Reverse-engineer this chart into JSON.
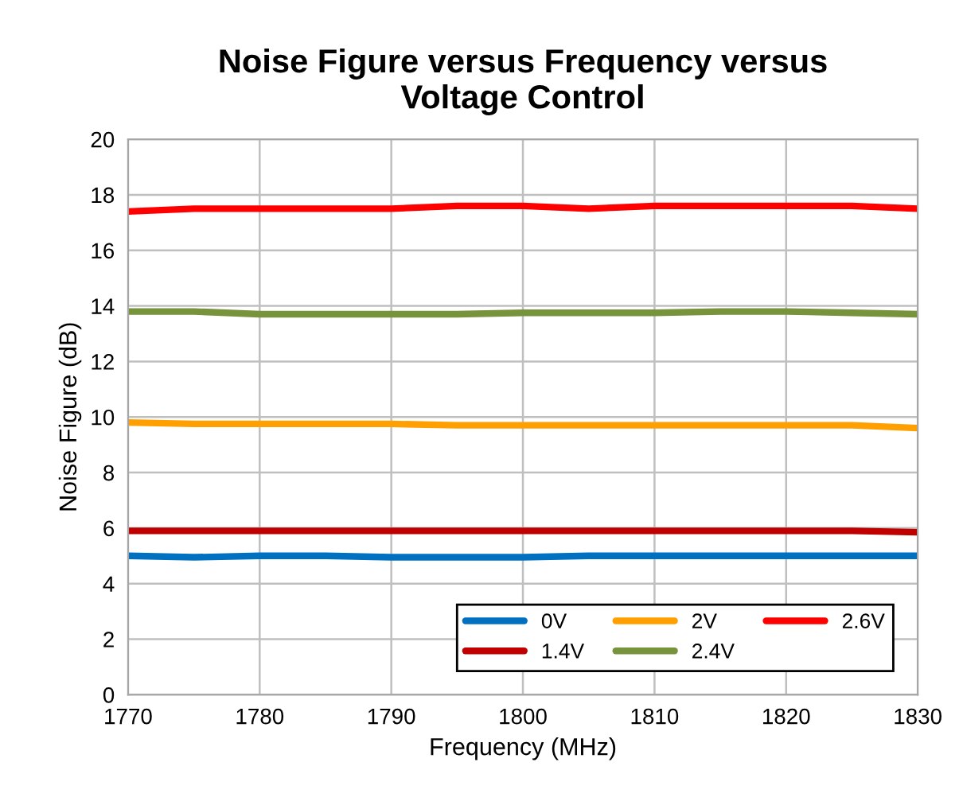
{
  "chart_data": {
    "type": "line",
    "title": "Noise Figure versus Frequency versus\nVoltage Control",
    "xlabel": "Frequency (MHz)",
    "ylabel": "Noise Figure (dB)",
    "x": [
      1770,
      1775,
      1780,
      1785,
      1790,
      1795,
      1800,
      1805,
      1810,
      1815,
      1820,
      1825,
      1830
    ],
    "series": [
      {
        "name": "0V",
        "color": "#0070c0",
        "values": [
          5.0,
          4.95,
          5.0,
          5.0,
          4.95,
          4.95,
          4.95,
          5.0,
          5.0,
          5.0,
          5.0,
          5.0,
          5.0
        ]
      },
      {
        "name": "1.4V",
        "color": "#c00000",
        "values": [
          5.9,
          5.9,
          5.9,
          5.9,
          5.9,
          5.9,
          5.9,
          5.9,
          5.9,
          5.9,
          5.9,
          5.9,
          5.85
        ]
      },
      {
        "name": "2V",
        "color": "#ffa000",
        "values": [
          9.8,
          9.75,
          9.75,
          9.75,
          9.75,
          9.7,
          9.7,
          9.7,
          9.7,
          9.7,
          9.7,
          9.7,
          9.6
        ]
      },
      {
        "name": "2.4V",
        "color": "#77933c",
        "values": [
          13.8,
          13.8,
          13.7,
          13.7,
          13.7,
          13.7,
          13.75,
          13.75,
          13.75,
          13.8,
          13.8,
          13.75,
          13.7
        ]
      },
      {
        "name": "2.6V",
        "color": "#ff0000",
        "values": [
          17.4,
          17.5,
          17.5,
          17.5,
          17.5,
          17.6,
          17.6,
          17.5,
          17.6,
          17.6,
          17.6,
          17.6,
          17.5
        ]
      }
    ],
    "xlim": [
      1770,
      1830
    ],
    "xticks": [
      1770,
      1780,
      1790,
      1800,
      1810,
      1820,
      1830
    ],
    "ylim": [
      0,
      20
    ],
    "yticks": [
      0,
      2,
      4,
      6,
      8,
      10,
      12,
      14,
      16,
      18,
      20
    ],
    "grid": true,
    "legend": "bottom right",
    "marker": "none",
    "line_style": "solid"
  }
}
